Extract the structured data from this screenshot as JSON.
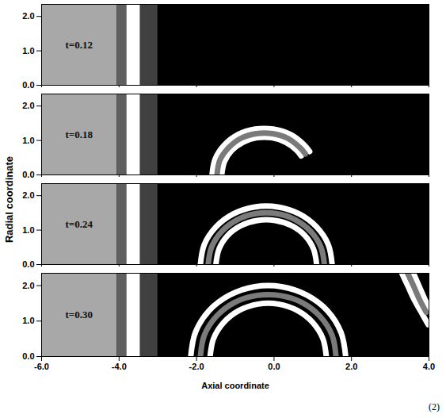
{
  "chart_data": [
    {
      "type": "line",
      "title": "t=0.12",
      "tick_labels": "y",
      "xlim": [
        -6,
        4
      ],
      "ylim": [
        0,
        2.35
      ],
      "xticks": [
        {
          "value": -6,
          "label": "-6.0"
        },
        {
          "value": -4,
          "label": "-4.0"
        },
        {
          "value": -2,
          "label": "-2.0"
        },
        {
          "value": 0,
          "label": "0.0"
        },
        {
          "value": 2,
          "label": "2.0"
        },
        {
          "value": 4,
          "label": "4.0"
        }
      ],
      "yticks": [
        {
          "value": 0,
          "label": "0.0"
        },
        {
          "value": 1,
          "label": "1.0"
        },
        {
          "value": 2,
          "label": "2.0"
        }
      ],
      "regions": [
        {
          "x1": -6,
          "x2": 4,
          "color": "#000000"
        },
        {
          "x1": -6,
          "x2": -4.05,
          "color": "#a8a8a8"
        },
        {
          "x1": -4.05,
          "x2": -3.8,
          "color": "#606060"
        },
        {
          "x1": -3.8,
          "x2": -3.45,
          "color": "#ffffff"
        },
        {
          "x1": -3.45,
          "x2": -3.0,
          "color": "#404040"
        }
      ],
      "series": []
    },
    {
      "type": "line",
      "title": "t=0.18",
      "tick_labels": "y",
      "xlim": [
        -6,
        4
      ],
      "ylim": [
        0,
        2.35
      ],
      "xticks": [
        {
          "value": -6,
          "label": "-6.0"
        },
        {
          "value": -4,
          "label": "-4.0"
        },
        {
          "value": -2,
          "label": "-2.0"
        },
        {
          "value": 0,
          "label": "0.0"
        },
        {
          "value": 2,
          "label": "2.0"
        },
        {
          "value": 4,
          "label": "4.0"
        }
      ],
      "yticks": [
        {
          "value": 0,
          "label": "0.0"
        },
        {
          "value": 1,
          "label": "1.0"
        },
        {
          "value": 2,
          "label": "2.0"
        }
      ],
      "regions": [
        {
          "x1": -6,
          "x2": 4,
          "color": "#000000"
        },
        {
          "x1": -6,
          "x2": -4.05,
          "color": "#a8a8a8"
        },
        {
          "x1": -4.05,
          "x2": -3.8,
          "color": "#606060"
        },
        {
          "x1": -3.8,
          "x2": -3.45,
          "color": "#ffffff"
        },
        {
          "x1": -3.45,
          "x2": -3.0,
          "color": "#404040"
        }
      ],
      "series": [
        {
          "color": "#ffffff",
          "x": [
            -1.6,
            -1.52,
            -1.28,
            -0.93,
            -0.49,
            -0.02,
            0.43,
            0.78,
            0.92
          ],
          "values": [
            0,
            0.46,
            0.87,
            1.17,
            1.33,
            1.33,
            1.17,
            0.87,
            0.68
          ]
        },
        {
          "color": "#ffffff",
          "x": [
            -1.35,
            -1.28,
            -1.09,
            -0.8,
            -0.44,
            -0.06,
            0.3,
            0.59,
            0.7
          ],
          "values": [
            0,
            0.38,
            0.71,
            0.95,
            1.08,
            1.08,
            0.95,
            0.71,
            0.55
          ]
        },
        {
          "color": "#7a7a7a",
          "x": [
            -1.47,
            -1.4,
            -1.18,
            -0.86,
            -0.46,
            -0.04,
            0.36,
            0.68,
            0.81
          ],
          "values": [
            0,
            0.42,
            0.78,
            1.06,
            1.2,
            1.2,
            1.06,
            0.78,
            0.61
          ]
        }
      ]
    },
    {
      "type": "line",
      "title": "t=0.24",
      "tick_labels": "y",
      "xlim": [
        -6,
        4
      ],
      "ylim": [
        0,
        2.35
      ],
      "xticks": [
        {
          "value": -6,
          "label": "-6.0"
        },
        {
          "value": -4,
          "label": "-4.0"
        },
        {
          "value": -2,
          "label": "-2.0"
        },
        {
          "value": 0,
          "label": "0.0"
        },
        {
          "value": 2,
          "label": "2.0"
        },
        {
          "value": 4,
          "label": "4.0"
        }
      ],
      "yticks": [
        {
          "value": 0,
          "label": "0.0"
        },
        {
          "value": 1,
          "label": "1.0"
        },
        {
          "value": 2,
          "label": "2.0"
        }
      ],
      "regions": [
        {
          "x1": -6,
          "x2": 4,
          "color": "#000000"
        },
        {
          "x1": -6,
          "x2": -4.05,
          "color": "#a8a8a8"
        },
        {
          "x1": -4.05,
          "x2": -3.8,
          "color": "#606060"
        },
        {
          "x1": -3.8,
          "x2": -3.45,
          "color": "#ffffff"
        },
        {
          "x1": -3.45,
          "x2": -3.0,
          "color": "#404040"
        }
      ],
      "series": [
        {
          "color": "#ffffff",
          "x": [
            -1.9,
            -1.8,
            -1.5,
            -1.05,
            -0.5,
            0.1,
            0.65,
            1.1,
            1.4,
            1.5
          ],
          "values": [
            0,
            0.58,
            1.09,
            1.47,
            1.67,
            1.67,
            1.47,
            1.09,
            0.58,
            0
          ]
        },
        {
          "color": "#ffffff",
          "x": [
            -1.5,
            -1.42,
            -1.2,
            -0.85,
            -0.43,
            0.03,
            0.45,
            0.8,
            1.02,
            1.1
          ],
          "values": [
            0,
            0.45,
            0.84,
            1.13,
            1.28,
            1.28,
            1.13,
            0.84,
            0.45,
            0
          ]
        },
        {
          "color": "#7a7a7a",
          "x": [
            -1.7,
            -1.61,
            -1.35,
            -0.95,
            -0.46,
            0.06,
            0.55,
            0.95,
            1.21,
            1.3
          ],
          "values": [
            0,
            0.51,
            0.96,
            1.3,
            1.48,
            1.48,
            1.3,
            0.96,
            0.51,
            0
          ]
        }
      ]
    },
    {
      "type": "line",
      "title": "t=0.30",
      "xlabel": "Axial coordinate",
      "xlim": [
        -6,
        4
      ],
      "ylim": [
        0,
        2.35
      ],
      "xticks": [
        {
          "value": -6,
          "label": "-6.0"
        },
        {
          "value": -4,
          "label": "-4.0"
        },
        {
          "value": -2,
          "label": "-2.0"
        },
        {
          "value": 0,
          "label": "0.0"
        },
        {
          "value": 2,
          "label": "2.0"
        },
        {
          "value": 4,
          "label": "4.0"
        }
      ],
      "yticks": [
        {
          "value": 0,
          "label": "0.0"
        },
        {
          "value": 1,
          "label": "1.0"
        },
        {
          "value": 2,
          "label": "2.0"
        }
      ],
      "regions": [
        {
          "x1": -6,
          "x2": 4,
          "color": "#000000"
        },
        {
          "x1": -6,
          "x2": -4.05,
          "color": "#a8a8a8"
        },
        {
          "x1": -4.05,
          "x2": -3.8,
          "color": "#606060"
        },
        {
          "x1": -3.8,
          "x2": -3.45,
          "color": "#ffffff"
        },
        {
          "x1": -3.45,
          "x2": -3.0,
          "color": "#404040"
        }
      ],
      "series": [
        {
          "color": "#ffffff",
          "x": [
            -2.15,
            -2.03,
            -1.68,
            -1.15,
            -0.5,
            0.2,
            0.85,
            1.38,
            1.73,
            1.85
          ],
          "values": [
            0,
            0.68,
            1.29,
            1.73,
            1.97,
            1.97,
            1.73,
            1.29,
            0.68,
            0
          ]
        },
        {
          "color": "#ffffff",
          "x": [
            -1.65,
            -1.56,
            -1.3,
            -0.9,
            -0.41,
            0.11,
            0.6,
            1.0,
            1.26,
            1.35
          ],
          "values": [
            0,
            0.51,
            0.96,
            1.3,
            1.48,
            1.48,
            1.3,
            0.96,
            0.51,
            0
          ]
        },
        {
          "color": "#7a7a7a",
          "x": [
            -1.9,
            -1.8,
            -1.49,
            -1.03,
            -0.46,
            0.16,
            0.73,
            1.19,
            1.5,
            1.6
          ],
          "values": [
            0,
            0.6,
            1.13,
            1.52,
            1.72,
            1.72,
            1.52,
            1.13,
            0.6,
            0
          ]
        },
        {
          "color": "#ffffff",
          "x": [
            3.3,
            3.45,
            3.62,
            3.8,
            3.98
          ],
          "values": [
            2.35,
            2.0,
            1.6,
            1.25,
            0.9
          ]
        },
        {
          "color": "#ffffff",
          "x": [
            3.6,
            3.74,
            3.9,
            4.05
          ],
          "values": [
            2.35,
            2.0,
            1.6,
            1.25
          ]
        },
        {
          "color": "#7a7a7a",
          "x": [
            3.45,
            3.6,
            3.76,
            3.93
          ],
          "values": [
            2.35,
            2.0,
            1.6,
            1.25
          ]
        }
      ]
    }
  ],
  "ylabel": "Radial coordinate",
  "annotations": [
    "(2)"
  ]
}
